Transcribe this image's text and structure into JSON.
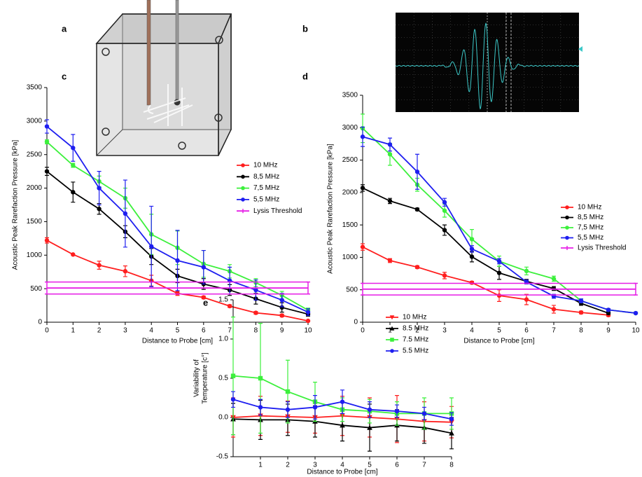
{
  "panel_labels": [
    "a",
    "b"
  ],
  "chart_data": [
    {
      "type": "line",
      "panel": "c",
      "xlabel": "Distance to Probe [cm]",
      "ylabel": "Acoustic Peak Rarefaction Pressure [kPa]",
      "x": [
        0,
        1,
        2,
        3,
        4,
        5,
        6,
        7,
        8,
        9,
        10
      ],
      "xlim": [
        0,
        10
      ],
      "xticks": [
        0,
        1,
        2,
        3,
        4,
        5,
        6,
        7,
        8,
        9,
        10
      ],
      "ylim": [
        0,
        3500
      ],
      "yticks": [
        0,
        500,
        1000,
        1500,
        2000,
        2500,
        3000,
        3500
      ],
      "legend": "right",
      "series": [
        {
          "name": "10 MHz",
          "color": "#ff1e1e",
          "marker": "circle",
          "values": [
            1220,
            1010,
            850,
            760,
            620,
            430,
            370,
            240,
            140,
            100,
            20
          ],
          "errors": [
            40,
            0,
            60,
            80,
            80,
            30,
            20,
            20,
            20,
            20,
            10
          ]
        },
        {
          "name": "8,5 MHz",
          "color": "#000000",
          "marker": "circle",
          "values": [
            2250,
            1940,
            1690,
            1350,
            980,
            690,
            570,
            480,
            350,
            220,
            120
          ],
          "errors": [
            60,
            150,
            80,
            90,
            120,
            100,
            80,
            80,
            80,
            70,
            30
          ]
        },
        {
          "name": "7,5 MHz",
          "color": "#3cf03c",
          "marker": "circle",
          "values": [
            2690,
            2340,
            2100,
            1850,
            1310,
            1110,
            870,
            760,
            590,
            400,
            180
          ],
          "errors": [
            30,
            30,
            80,
            150,
            300,
            250,
            200,
            100,
            60,
            60,
            30
          ]
        },
        {
          "name": "5,5 MHz",
          "color": "#1e1ef0",
          "marker": "circle",
          "values": [
            2920,
            2600,
            2000,
            1620,
            1130,
            920,
            820,
            620,
            480,
            330,
            150
          ],
          "errors": [
            100,
            200,
            250,
            500,
            600,
            450,
            250,
            200,
            150,
            100,
            50
          ]
        },
        {
          "name": "Lysis Threshold",
          "color": "#e61ee6",
          "band": true,
          "values": [
            510,
            510,
            510,
            510,
            510,
            510,
            510,
            510,
            510,
            510,
            510
          ],
          "errors": [
            90,
            90,
            90,
            90,
            90,
            90,
            90,
            90,
            90,
            90,
            90
          ]
        }
      ]
    },
    {
      "type": "line",
      "panel": "d",
      "xlabel": "Distance to Probe [cm]",
      "ylabel": "Acoustic Peak Rarefaction Pressure [kPa]",
      "x": [
        0,
        1,
        2,
        3,
        4,
        5,
        6,
        7,
        8,
        9,
        10
      ],
      "xlim": [
        0,
        10
      ],
      "xticks": [
        0,
        1,
        2,
        3,
        4,
        5,
        6,
        7,
        8,
        9,
        10
      ],
      "ylim": [
        0,
        3500
      ],
      "yticks": [
        0,
        500,
        1000,
        1500,
        2000,
        2500,
        3000,
        3500
      ],
      "legend": "right",
      "series": [
        {
          "name": "10 MHz",
          "color": "#ff1e1e",
          "marker": "circle",
          "values": [
            1160,
            950,
            850,
            720,
            610,
            410,
            350,
            200,
            150,
            110,
            null
          ],
          "errors": [
            50,
            30,
            20,
            50,
            20,
            90,
            80,
            60,
            20,
            20,
            null
          ]
        },
        {
          "name": "8,5 MHz",
          "color": "#000000",
          "marker": "circle",
          "values": [
            2070,
            1870,
            1740,
            1420,
            1010,
            760,
            630,
            520,
            290,
            140,
            null
          ],
          "errors": [
            50,
            40,
            20,
            80,
            80,
            100,
            30,
            30,
            30,
            20,
            null
          ]
        },
        {
          "name": "7,5 MHz",
          "color": "#3cf03c",
          "marker": "circle",
          "values": [
            2990,
            2590,
            2120,
            1720,
            1280,
            940,
            790,
            670,
            330,
            190,
            140
          ],
          "errors": [
            220,
            170,
            100,
            100,
            150,
            80,
            60,
            40,
            30,
            20,
            10
          ]
        },
        {
          "name": "5,5 MHz",
          "color": "#1e1ef0",
          "marker": "circle",
          "values": [
            2860,
            2740,
            2320,
            1850,
            1130,
            940,
            620,
            400,
            330,
            190,
            140
          ],
          "errors": [
            150,
            100,
            270,
            60,
            50,
            40,
            30,
            30,
            30,
            20,
            10
          ]
        },
        {
          "name": "Lysis Threshold",
          "color": "#e61ee6",
          "band": true,
          "values": [
            510,
            510,
            510,
            510,
            510,
            510,
            510,
            510,
            510,
            510,
            510
          ],
          "errors": [
            90,
            90,
            90,
            90,
            90,
            90,
            90,
            90,
            90,
            90,
            90
          ]
        }
      ]
    },
    {
      "type": "line",
      "panel": "e",
      "xlabel": "Distance to Probe [cm]",
      "ylabel": [
        "Variability of",
        "Temperature [c°]"
      ],
      "x": [
        0,
        1,
        2,
        3,
        4,
        5,
        6,
        7,
        8
      ],
      "xlim": [
        0,
        8
      ],
      "xticks": [
        1,
        2,
        3,
        4,
        5,
        6,
        7,
        8
      ],
      "ylim": [
        -0.5,
        1.5
      ],
      "yticks": [
        -0.5,
        {
          "value": 0,
          "label": "0.0"
        },
        0.5,
        {
          "value": 1,
          "label": "1.0"
        },
        1.5
      ],
      "legend": "upper right",
      "series": [
        {
          "name": "10 MHz",
          "color": "#ff1e1e",
          "marker": "triangle-down",
          "values": [
            0.0,
            0.02,
            0.01,
            0.0,
            0.02,
            0.0,
            -0.02,
            -0.05,
            -0.06
          ],
          "errors": [
            0.25,
            0.25,
            0.2,
            0.2,
            0.25,
            0.25,
            0.3,
            0.25,
            0.2
          ]
        },
        {
          "name": "8.5 MHz",
          "color": "#000000",
          "marker": "triangle-up",
          "values": [
            -0.02,
            -0.03,
            -0.03,
            -0.05,
            -0.1,
            -0.13,
            -0.1,
            -0.13,
            -0.2
          ],
          "errors": [
            0.2,
            0.25,
            0.2,
            0.2,
            0.2,
            0.3,
            0.2,
            0.2,
            0.2
          ]
        },
        {
          "name": "7.5 MHz",
          "color": "#3cf03c",
          "marker": "square",
          "values": [
            0.53,
            0.5,
            0.33,
            0.2,
            0.1,
            0.08,
            0.05,
            0.05,
            0.05
          ],
          "errors": [
            0.75,
            0.7,
            0.4,
            0.25,
            0.15,
            0.15,
            0.15,
            0.2,
            0.2
          ]
        },
        {
          "name": "5.5 MHz",
          "color": "#1e1ef0",
          "marker": "circle",
          "values": [
            0.23,
            0.13,
            0.1,
            0.13,
            0.2,
            0.1,
            0.08,
            0.05,
            -0.02
          ],
          "errors": [
            0.1,
            0.1,
            0.1,
            0.15,
            0.15,
            0.1,
            0.08,
            0.08,
            0.08
          ]
        }
      ]
    }
  ]
}
